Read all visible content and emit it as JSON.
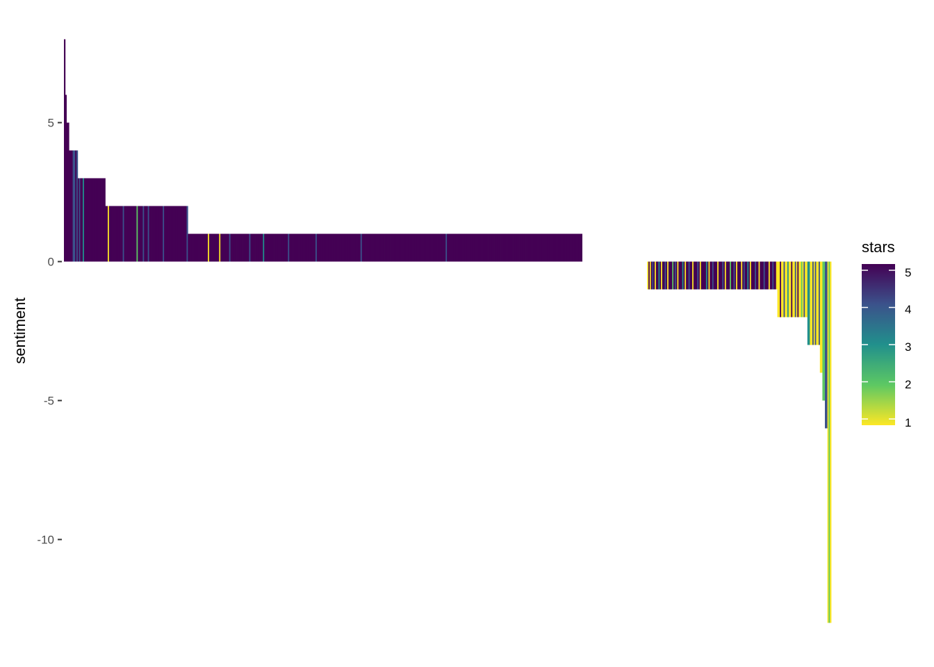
{
  "chart_data": {
    "type": "bar",
    "ylabel": "sentiment",
    "xlabel": "",
    "ylim": [
      -13,
      8
    ],
    "yticks": [
      5,
      0,
      -5,
      -10
    ],
    "ytick_labels": [
      "5",
      "0",
      "-5",
      "-10"
    ],
    "grid": false,
    "legend": {
      "title": "stars",
      "placement": "right",
      "type": "colorbar",
      "palette": "viridis",
      "range": [
        1,
        5
      ],
      "breaks": [
        5,
        4,
        3,
        2,
        1
      ],
      "labels": [
        "5",
        "4",
        "3",
        "2",
        "1"
      ],
      "colors": [
        "#440154",
        "#3b528b",
        "#21908c",
        "#5dc863",
        "#fde725"
      ]
    },
    "bar_groups": [
      {
        "sentiment": 8,
        "count": 1,
        "stars": [
          5
        ]
      },
      {
        "sentiment": 6,
        "count": 1,
        "stars": [
          5
        ]
      },
      {
        "sentiment": 5,
        "count": 2,
        "stars": [
          5,
          5
        ]
      },
      {
        "sentiment": 4,
        "count": 7,
        "stars": [
          5,
          5,
          5,
          4,
          4,
          5,
          4
        ]
      },
      {
        "sentiment": 3,
        "count": 22,
        "stars": [
          5,
          4,
          5,
          5,
          3,
          5,
          5,
          5,
          5,
          5,
          5,
          5,
          5,
          5,
          5,
          5,
          5,
          5,
          5,
          5,
          5,
          5
        ]
      },
      {
        "sentiment": 2,
        "count": 66,
        "stars": [
          5,
          5,
          1,
          5,
          5,
          5,
          5,
          5,
          5,
          5,
          5,
          5,
          5,
          5,
          4,
          5,
          5,
          5,
          5,
          5,
          5,
          5,
          5,
          5,
          5,
          2,
          5,
          5,
          5,
          5,
          4,
          5,
          5,
          5,
          4,
          5,
          5,
          5,
          5,
          5,
          5,
          5,
          5,
          5,
          5,
          5,
          4,
          5,
          5,
          5,
          5,
          5,
          5,
          5,
          5,
          5,
          5,
          5,
          5,
          5,
          5,
          5,
          5,
          5,
          5,
          4
        ]
      },
      {
        "sentiment": 1,
        "count": 315,
        "stars": [
          5,
          5,
          5,
          5,
          5,
          5,
          5,
          5,
          5,
          5,
          5,
          5,
          5,
          5,
          5,
          5,
          1,
          5,
          5,
          5,
          5,
          5,
          5,
          5,
          5,
          1,
          5,
          5,
          5,
          5,
          5,
          5,
          5,
          4,
          5,
          5,
          5,
          5,
          5,
          5,
          5,
          5,
          5,
          5,
          5,
          5,
          5,
          5,
          5,
          4,
          5,
          5,
          5,
          5,
          5,
          5,
          5,
          5,
          5,
          5,
          3,
          5,
          5,
          5,
          5,
          5,
          5,
          5,
          5,
          5,
          5,
          5,
          5,
          5,
          5,
          5,
          5,
          5,
          5,
          5,
          4,
          5,
          5,
          5,
          5,
          5,
          5,
          5,
          5,
          5,
          5,
          5,
          5,
          5,
          5,
          5,
          5,
          5,
          5,
          5,
          5,
          5,
          4,
          5,
          5,
          5,
          5,
          5,
          5,
          5,
          5,
          5,
          5,
          5,
          5,
          5,
          5,
          5,
          5,
          5,
          5,
          5,
          5,
          5,
          5,
          5,
          5,
          5,
          5,
          5,
          5,
          5,
          5,
          5,
          5,
          5,
          5,
          5,
          4,
          5,
          5,
          5,
          5,
          5,
          5,
          5,
          5,
          5,
          5,
          5,
          5,
          5,
          5,
          5,
          5,
          5,
          5,
          5,
          5,
          5,
          5,
          5,
          5,
          5,
          5,
          5,
          5,
          5,
          5,
          5,
          5,
          5,
          5,
          5,
          5,
          5,
          5,
          5,
          5,
          5,
          5,
          5,
          5,
          5,
          5,
          5,
          5,
          5,
          5,
          5,
          5,
          5,
          5,
          5,
          5,
          5,
          5,
          5,
          5,
          5,
          5,
          5,
          5,
          5,
          5,
          5,
          4,
          5,
          5,
          5,
          5,
          5,
          5,
          5,
          5,
          5,
          5,
          5,
          5,
          5,
          5,
          5,
          5,
          5,
          5,
          5,
          5,
          5,
          5,
          5,
          5,
          5,
          5,
          5,
          5,
          5,
          5,
          5,
          5,
          5,
          5,
          5,
          5,
          5,
          5,
          5,
          5,
          5,
          5,
          5,
          5,
          5,
          5,
          5,
          5,
          5,
          5,
          5,
          5,
          5,
          5,
          5,
          5,
          5,
          5,
          5,
          5,
          5,
          5,
          5,
          5,
          5,
          5,
          5,
          5,
          5,
          5,
          5,
          5,
          5,
          5,
          5,
          5,
          5,
          5,
          5,
          5,
          5,
          5,
          5,
          5,
          5,
          5,
          5,
          5,
          5,
          5,
          5,
          5,
          5,
          5,
          5,
          5,
          5,
          5,
          5,
          5,
          5,
          5,
          5,
          5,
          5,
          5,
          5,
          5,
          5,
          5,
          5,
          5,
          5,
          5,
          1,
          4,
          5
        ]
      },
      {
        "sentiment": 0,
        "count": 52,
        "stars": [
          5,
          5,
          5,
          5,
          5,
          5,
          5,
          1,
          5,
          5,
          5,
          5,
          5,
          5,
          5,
          5,
          5,
          5,
          5,
          5,
          4,
          5,
          5,
          5,
          5,
          5,
          5,
          5,
          5,
          5,
          5,
          5,
          5,
          5,
          5,
          5,
          5,
          4,
          5,
          5,
          5,
          5,
          5,
          5,
          5,
          5,
          5,
          5,
          5,
          5,
          5,
          5
        ]
      },
      {
        "sentiment": -1,
        "count": 104,
        "stars": [
          1,
          5,
          1,
          5,
          4,
          5,
          1,
          5,
          5,
          3,
          5,
          1,
          5,
          5,
          4,
          5,
          1,
          5,
          5,
          5,
          2,
          5,
          4,
          5,
          1,
          5,
          5,
          5,
          3,
          5,
          1,
          5,
          5,
          4,
          5,
          5,
          1,
          5,
          5,
          5,
          4,
          5,
          1,
          5,
          5,
          5,
          5,
          3,
          5,
          1,
          5,
          5,
          4,
          5,
          5,
          5,
          1,
          5,
          5,
          5,
          4,
          5,
          1,
          5,
          5,
          5,
          2,
          5,
          5,
          4,
          5,
          1,
          5,
          5,
          5,
          1,
          5,
          4,
          5,
          5,
          3,
          5,
          1,
          5,
          5,
          5,
          4,
          5,
          5,
          1,
          5,
          5,
          5,
          4,
          5,
          5,
          5,
          1,
          5,
          5,
          4,
          5,
          5,
          1
        ]
      },
      {
        "sentiment": -2,
        "count": 24,
        "stars": [
          1,
          1,
          5,
          1,
          1,
          4,
          1,
          1,
          3,
          1,
          1,
          5,
          1,
          1,
          4,
          1,
          5,
          1,
          1,
          2,
          1,
          4,
          1,
          1
        ]
      },
      {
        "sentiment": -3,
        "count": 10,
        "stars": [
          3,
          3,
          1,
          1,
          4,
          1,
          4,
          1,
          1,
          4
        ]
      },
      {
        "sentiment": -4,
        "count": 2,
        "stars": [
          1,
          1
        ]
      },
      {
        "sentiment": -5,
        "count": 2,
        "stars": [
          2,
          2
        ]
      },
      {
        "sentiment": -6,
        "count": 2,
        "stars": [
          4,
          4
        ]
      },
      {
        "sentiment": -13,
        "count": 3,
        "stars": [
          1,
          2,
          1
        ]
      }
    ]
  }
}
